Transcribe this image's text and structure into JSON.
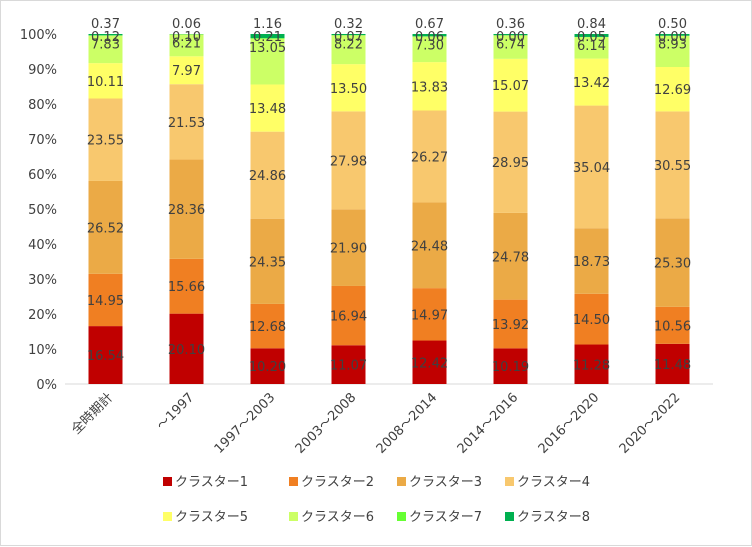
{
  "chart_data": {
    "type": "bar",
    "stacked": "percent",
    "categories": [
      "全時期計",
      "～1997",
      "1997～2003",
      "2003～2008",
      "2008～2014",
      "2014～2016",
      "2016～2020",
      "2020～2022"
    ],
    "series": [
      {
        "name": "クラスター1",
        "color": "#C00000",
        "values": [
          16.54,
          20.1,
          10.2,
          11.07,
          12.42,
          10.19,
          11.28,
          11.48
        ]
      },
      {
        "name": "クラスター2",
        "color": "#F07F22",
        "values": [
          14.95,
          15.66,
          12.68,
          16.94,
          14.97,
          13.92,
          14.5,
          10.56
        ]
      },
      {
        "name": "クラスター3",
        "color": "#EBAA46",
        "values": [
          26.52,
          28.36,
          24.35,
          21.9,
          24.48,
          24.78,
          18.73,
          25.3
        ]
      },
      {
        "name": "クラスター4",
        "color": "#F8C86E",
        "values": [
          23.55,
          21.53,
          24.86,
          27.98,
          26.27,
          28.95,
          35.04,
          30.55
        ]
      },
      {
        "name": "クラスター5",
        "color": "#FFFF66",
        "values": [
          10.11,
          7.97,
          13.48,
          13.5,
          13.83,
          15.07,
          13.42,
          12.69
        ]
      },
      {
        "name": "クラスター6",
        "color": "#CCFF66",
        "values": [
          7.83,
          6.21,
          13.05,
          8.22,
          7.3,
          6.74,
          6.14,
          8.93
        ]
      },
      {
        "name": "クラスター7",
        "color": "#66FF33",
        "values": [
          0.12,
          0.1,
          0.21,
          0.07,
          0.06,
          0.0,
          0.05,
          0.0
        ]
      },
      {
        "name": "クラスター8",
        "color": "#00B050",
        "values": [
          0.37,
          0.06,
          1.16,
          0.32,
          0.67,
          0.36,
          0.84,
          0.5
        ]
      }
    ],
    "yticks": [
      "0%",
      "10%",
      "20%",
      "30%",
      "40%",
      "50%",
      "60%",
      "70%",
      "80%",
      "90%",
      "100%"
    ],
    "ylim": [
      0,
      100
    ],
    "grid": false,
    "legend": "bottom"
  }
}
